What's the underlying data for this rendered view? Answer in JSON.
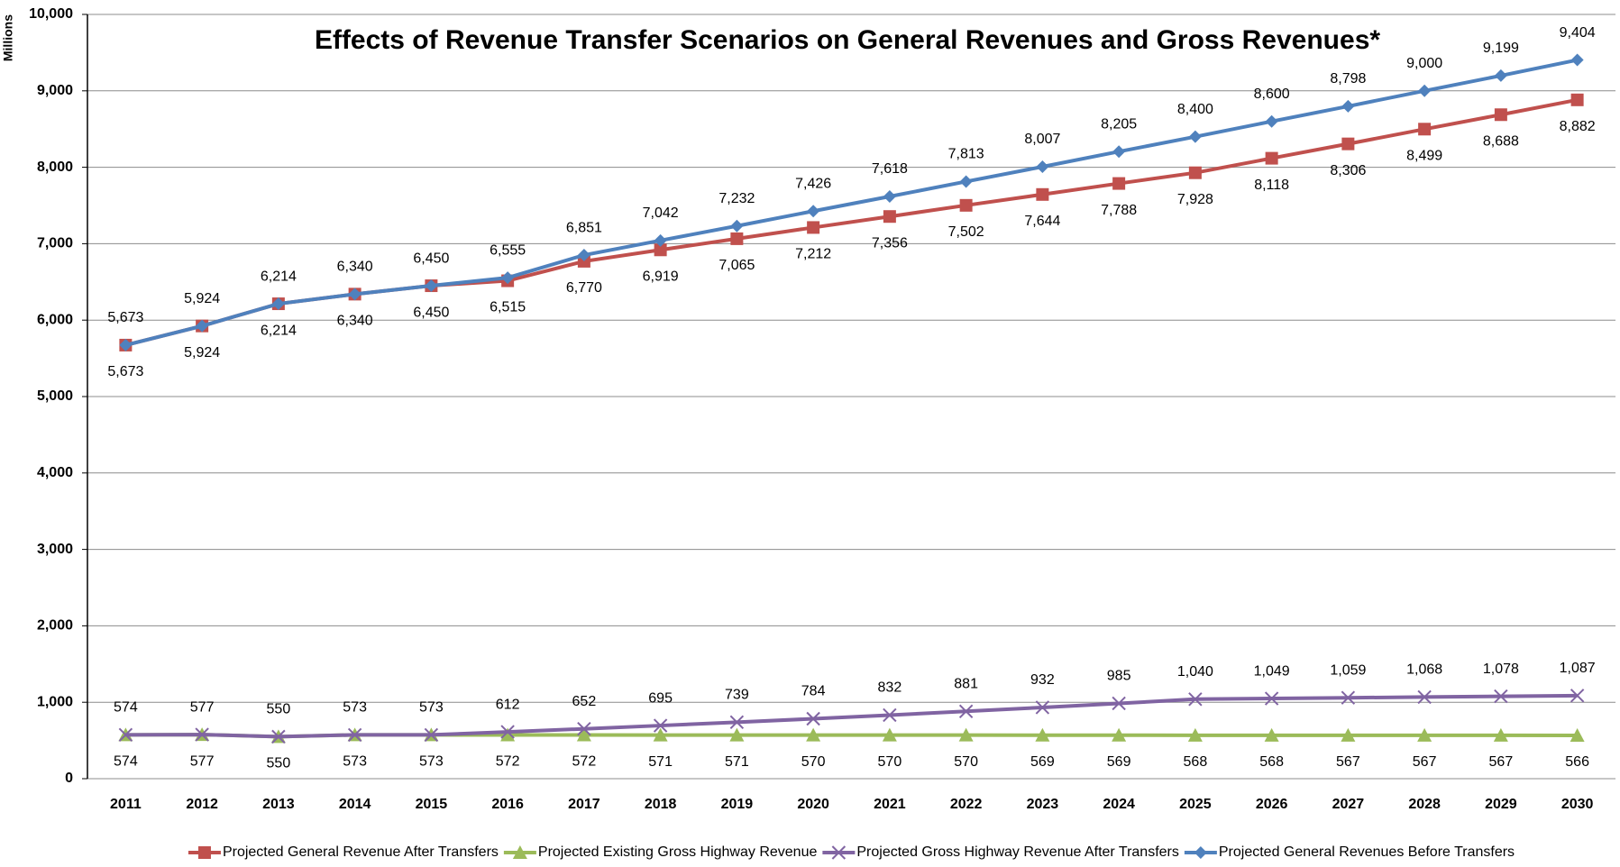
{
  "chart_data": {
    "type": "line",
    "title": "Effects of Revenue Transfer Scenarios on General Revenues and Gross Revenues*",
    "y_label": "Millions",
    "categories": [
      "2011",
      "2012",
      "2013",
      "2014",
      "2015",
      "2016",
      "2017",
      "2018",
      "2019",
      "2020",
      "2021",
      "2022",
      "2023",
      "2024",
      "2025",
      "2026",
      "2027",
      "2028",
      "2029",
      "2030"
    ],
    "ylim": [
      0,
      10000
    ],
    "yticks": [
      0,
      {
        "value": 1000,
        "label": "1,000"
      },
      {
        "value": 2000,
        "label": "2,000"
      },
      {
        "value": 3000,
        "label": "3,000"
      },
      {
        "value": 4000,
        "label": "4,000"
      },
      {
        "value": 5000,
        "label": "5,000"
      },
      {
        "value": 6000,
        "label": "6,000"
      },
      {
        "value": 7000,
        "label": "7,000"
      },
      {
        "value": 8000,
        "label": "8,000"
      },
      {
        "value": 9000,
        "label": "9,000"
      },
      {
        "value": 10000,
        "label": "10,000"
      }
    ],
    "grid": true,
    "legend": "bottom",
    "series": [
      {
        "name": "Projected General Revenue After Transfers",
        "color": "#c0504d",
        "marker": "square",
        "values": [
          5673,
          5924,
          6214,
          6340,
          6450,
          6515,
          6770,
          6919,
          7065,
          7212,
          7356,
          7502,
          7644,
          7788,
          7928,
          8118,
          8306,
          8499,
          8688,
          8882
        ],
        "value_labels": [
          "5,673",
          "5,924",
          "6,214",
          "6,340",
          "6,450",
          "6,515",
          "6,770",
          "6,919",
          "7,065",
          "7,212",
          "7,356",
          "7,502",
          "7,644",
          "7,788",
          "7,928",
          "8,118",
          "8,306",
          "8,499",
          "8,688",
          "8,882"
        ]
      },
      {
        "name": "Projected Existing Gross Highway Revenue",
        "color": "#9bbb59",
        "marker": "triangle",
        "values": [
          574,
          577,
          550,
          573,
          573,
          572,
          572,
          571,
          571,
          570,
          570,
          570,
          569,
          569,
          568,
          568,
          567,
          567,
          567,
          566
        ],
        "value_labels": [
          "574",
          "577",
          "550",
          "573",
          "573",
          "572",
          "572",
          "571",
          "571",
          "570",
          "570",
          "570",
          "569",
          "569",
          "568",
          "568",
          "567",
          "567",
          "567",
          "566"
        ]
      },
      {
        "name": "Projected Gross Highway Revenue After Transfers",
        "color": "#8064a2",
        "marker": "x",
        "values": [
          574,
          577,
          550,
          573,
          573,
          612,
          652,
          695,
          739,
          784,
          832,
          881,
          932,
          985,
          1040,
          1049,
          1059,
          1068,
          1078,
          1087
        ],
        "value_labels": [
          "574",
          "577",
          "550",
          "573",
          "573",
          "612",
          "652",
          "695",
          "739",
          "784",
          "832",
          "881",
          "932",
          "985",
          "1,040",
          "1,049",
          "1,059",
          "1,068",
          "1,078",
          "1,087"
        ]
      },
      {
        "name": "Projected General Revenues Before Transfers",
        "color": "#4f81bd",
        "marker": "diamond",
        "values": [
          5673,
          5924,
          6214,
          6340,
          6450,
          6555,
          6851,
          7042,
          7232,
          7426,
          7618,
          7813,
          8007,
          8205,
          8400,
          8600,
          8798,
          9000,
          9199,
          9404
        ],
        "value_labels": [
          "5,673",
          "5,924",
          "6,214",
          "6,340",
          "6,450",
          "6,555",
          "6,851",
          "7,042",
          "7,232",
          "7,426",
          "7,618",
          "7,813",
          "8,007",
          "8,205",
          "8,400",
          "8,600",
          "8,798",
          "9,000",
          "9,199",
          "9,404"
        ]
      }
    ]
  }
}
